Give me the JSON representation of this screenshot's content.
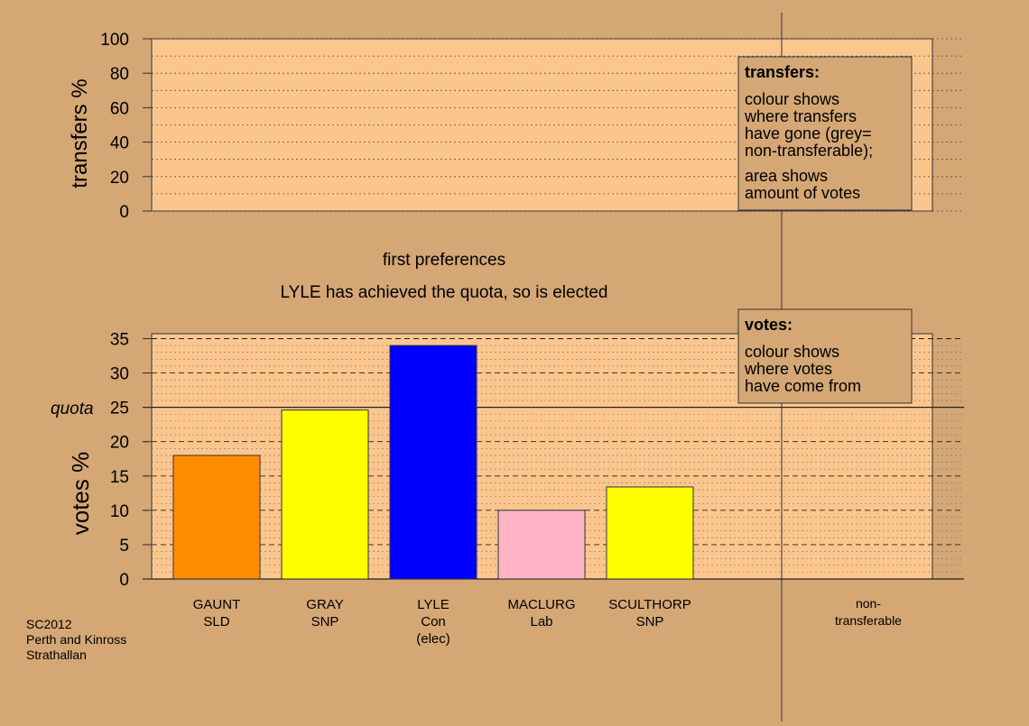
{
  "chart_data": [
    {
      "type": "bar",
      "title": "transfers",
      "ylabel": "transfers %",
      "ylim": [
        0,
        100
      ],
      "yticks": [
        "0",
        "20",
        "40",
        "60",
        "80",
        "100"
      ],
      "series": []
    },
    {
      "type": "bar",
      "ylabel": "votes %",
      "ylim": [
        0,
        35
      ],
      "yticks": [
        "0",
        "5",
        "10",
        "15",
        "20",
        "25",
        "30",
        "35"
      ],
      "quota": 25,
      "quota_label": "quota",
      "categories": [
        {
          "name": "GAUNT",
          "party": "SLD",
          "note": ""
        },
        {
          "name": "GRAY",
          "party": "SNP",
          "note": ""
        },
        {
          "name": "LYLE",
          "party": "Con",
          "note": "(elec)"
        },
        {
          "name": "MACLURG",
          "party": "Lab",
          "note": ""
        },
        {
          "name": "SCULTHORP",
          "party": "SNP",
          "note": ""
        }
      ],
      "values": [
        18,
        24.6,
        34,
        10,
        13.4
      ],
      "colors": [
        "#ff8c00",
        "#ffff00",
        "#0000ff",
        "#ffb3c6",
        "#ffff00"
      ],
      "nontransferable_label": [
        "non-",
        "transferable"
      ]
    }
  ],
  "stage_text": {
    "line1": "first preferences",
    "line2": "LYLE has achieved the quota, so is elected"
  },
  "legend_transfers": {
    "title": "transfers:",
    "lines": [
      "colour shows",
      "where transfers",
      "have gone (grey=",
      "non-transferable);"
    ],
    "lines2": [
      "area shows",
      "amount of votes"
    ]
  },
  "legend_votes": {
    "title": "votes:",
    "lines": [
      "colour shows",
      "where votes",
      "have come from"
    ]
  },
  "footer": {
    "lines": [
      "SC2012",
      "Perth and Kinross",
      "Strathallan"
    ]
  },
  "colors": {
    "background": "#d4a775",
    "plot_bg": "#fbc68e",
    "legend_bg": "#d4a775"
  }
}
